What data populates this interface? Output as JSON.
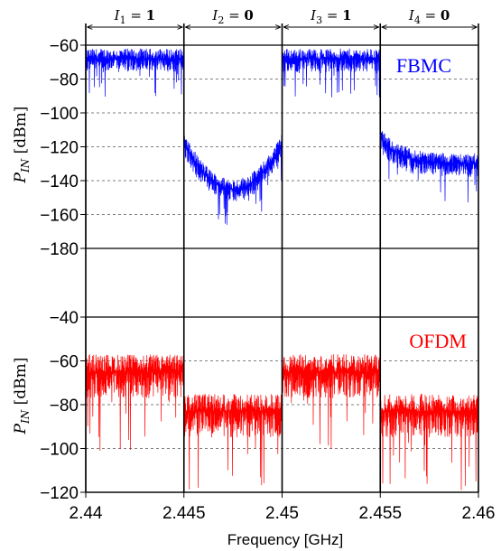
{
  "chart_data": [
    {
      "type": "line",
      "series": [
        {
          "name": "FBMC",
          "color": "#0000ff"
        }
      ],
      "ylabel": "P_IN [dBm]",
      "ylim": [
        -180,
        -60
      ],
      "yticks": [
        "-60",
        "-80",
        "-100",
        "-120",
        "-140",
        "-160",
        "-180"
      ],
      "yticks_values": [
        -60,
        -80,
        -100,
        -120,
        -140,
        -160,
        -180
      ],
      "xlim": [
        2.44,
        2.46
      ],
      "grid": "horizontal dashed",
      "segments": [
        {
          "x": [
            2.44,
            2.445
          ],
          "level": -68,
          "shape": "flat"
        },
        {
          "x": [
            2.445,
            2.45
          ],
          "level_edges": -118,
          "level_center": -145,
          "shape": "bowl"
        },
        {
          "x": [
            2.45,
            2.455
          ],
          "level": -68,
          "shape": "flat"
        },
        {
          "x": [
            2.455,
            2.46
          ],
          "level_start": -115,
          "level_end": -130,
          "shape": "decay"
        }
      ]
    },
    {
      "type": "line",
      "series": [
        {
          "name": "OFDM",
          "color": "#ff0000"
        }
      ],
      "ylabel": "P_IN [dBm]",
      "ylim": [
        -120,
        -40
      ],
      "yticks": [
        "-40",
        "-60",
        "-80",
        "-100",
        "-120"
      ],
      "yticks_values": [
        -40,
        -60,
        -80,
        -100,
        -120
      ],
      "xlim": [
        2.44,
        2.46
      ],
      "xticks": [
        "2.44",
        "2.445",
        "2.45",
        "2.455",
        "2.46"
      ],
      "xticks_values": [
        2.44,
        2.445,
        2.45,
        2.455,
        2.46
      ],
      "xlabel": "Frequency [GHz]",
      "grid": "horizontal dashed",
      "segments": [
        {
          "x": [
            2.44,
            2.445
          ],
          "level": -65,
          "shape": "flat"
        },
        {
          "x": [
            2.445,
            2.45
          ],
          "level": -83,
          "shape": "flat"
        },
        {
          "x": [
            2.45,
            2.455
          ],
          "level": -65,
          "shape": "flat"
        },
        {
          "x": [
            2.455,
            2.46
          ],
          "level": -83,
          "shape": "flat"
        }
      ]
    }
  ],
  "intervals": [
    {
      "var": "I",
      "sub": "1",
      "eq": " = ",
      "val": "1"
    },
    {
      "var": "I",
      "sub": "2",
      "eq": " = ",
      "val": "0"
    },
    {
      "var": "I",
      "sub": "3",
      "eq": " = ",
      "val": "1"
    },
    {
      "var": "I",
      "sub": "4",
      "eq": " = ",
      "val": "0"
    }
  ],
  "ylabel_parts": {
    "var": "P",
    "sub": "IN",
    "unit": " [dBm]"
  }
}
